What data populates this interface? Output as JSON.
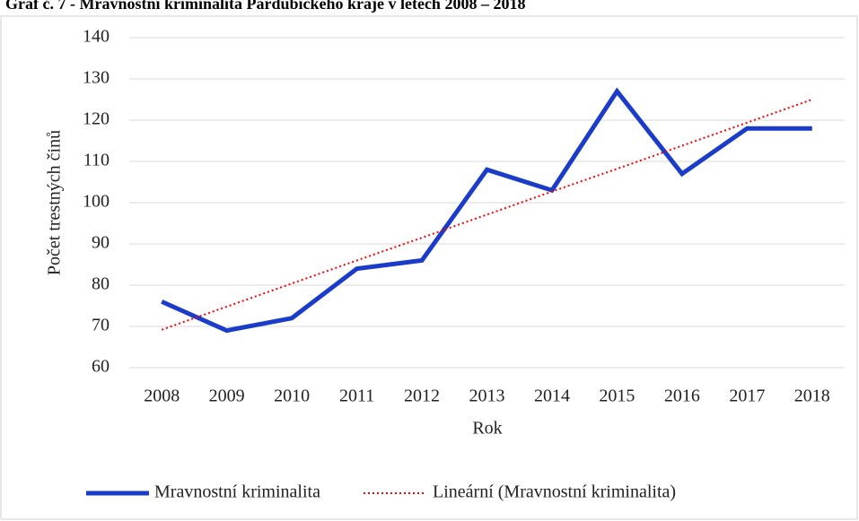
{
  "chart_data": {
    "type": "line",
    "title": "Graf č. 7 - Mravnostní kriminalita Pardubického kraje v letech 2008 – 2018",
    "x_label": "Rok",
    "y_label": "Počet trestných činů",
    "categories": [
      "2008",
      "2009",
      "2010",
      "2011",
      "2012",
      "2013",
      "2014",
      "2015",
      "2016",
      "2017",
      "2018"
    ],
    "series": [
      {
        "name": "Mravnostní kriminalita",
        "color": "#1a3cc8",
        "style": "solid",
        "values": [
          76,
          69,
          72,
          84,
          86,
          108,
          103,
          127,
          107,
          118,
          118
        ]
      },
      {
        "name": "Lineární (Mravnostní kriminalita)",
        "color": "#ff0000",
        "style": "dotted",
        "values": [
          69.2,
          74.8,
          80.4,
          86.0,
          91.5,
          97.1,
          102.7,
          108.2,
          113.8,
          119.4,
          125.0
        ]
      }
    ],
    "ylim": [
      60,
      140
    ],
    "yticks": [
      60,
      70,
      80,
      90,
      100,
      110,
      120,
      130,
      140
    ],
    "grid": true,
    "legend": "bottom"
  }
}
